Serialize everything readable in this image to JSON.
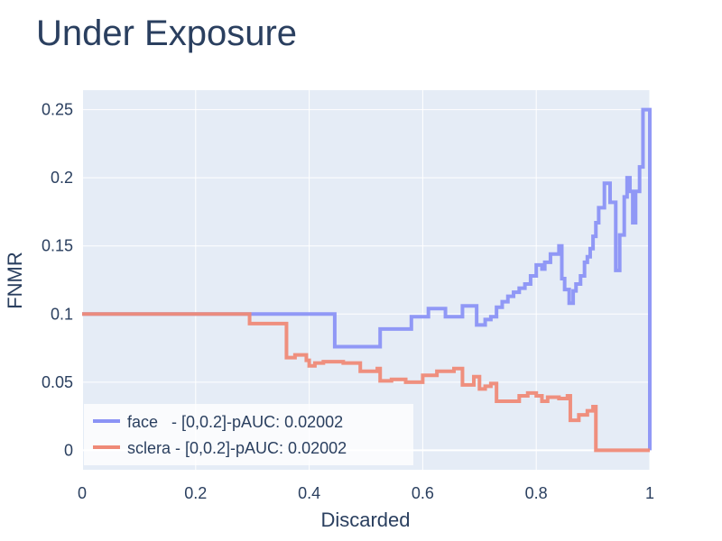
{
  "chart_data": {
    "type": "line",
    "title": "Under Exposure",
    "xlabel": "Discarded",
    "ylabel": "FNMR",
    "xlim": [
      0,
      1
    ],
    "ylim": [
      -0.0143,
      0.2643
    ],
    "x_ticks": [
      0,
      0.2,
      0.4,
      0.6,
      0.8,
      1
    ],
    "x_tick_labels": [
      "0",
      "0.2",
      "0.4",
      "0.6",
      "0.8",
      "1"
    ],
    "y_ticks": [
      0,
      0.05,
      0.1,
      0.15,
      0.2,
      0.25
    ],
    "y_tick_labels": [
      "0",
      "0.05",
      "0.1",
      "0.15",
      "0.2",
      "0.25"
    ],
    "grid": true,
    "legend_position": "bottom-left",
    "line_shape": "step",
    "colors": {
      "plot_bg": "#E5ECF6",
      "grid": "#ffffff",
      "text": "#2a3f5f"
    },
    "series": [
      {
        "name": "face",
        "legend_label": "face   - [0,0.2]-pAUC: 0.02002",
        "color": "#8b93f5",
        "x": [
          0,
          0.3,
          0.445,
          0.525,
          0.58,
          0.61,
          0.64,
          0.67,
          0.695,
          0.71,
          0.72,
          0.73,
          0.74,
          0.75,
          0.76,
          0.77,
          0.78,
          0.79,
          0.8,
          0.81,
          0.815,
          0.825,
          0.84,
          0.845,
          0.85,
          0.858,
          0.865,
          0.87,
          0.878,
          0.885,
          0.89,
          0.895,
          0.9,
          0.905,
          0.91,
          0.92,
          0.93,
          0.94,
          0.947,
          0.955,
          0.96,
          0.965,
          0.97,
          0.975,
          0.982,
          0.988,
          0.992,
          0.998,
          1.0
        ],
        "y": [
          0.1,
          0.1,
          0.076,
          0.089,
          0.098,
          0.104,
          0.098,
          0.106,
          0.092,
          0.096,
          0.098,
          0.105,
          0.109,
          0.113,
          0.116,
          0.119,
          0.122,
          0.128,
          0.136,
          0.133,
          0.138,
          0.144,
          0.15,
          0.126,
          0.118,
          0.108,
          0.117,
          0.122,
          0.128,
          0.138,
          0.142,
          0.148,
          0.157,
          0.167,
          0.178,
          0.196,
          0.182,
          0.132,
          0.158,
          0.186,
          0.2,
          0.19,
          0.167,
          0.19,
          0.208,
          0.25,
          0.25,
          0.25,
          0.0
        ]
      },
      {
        "name": "sclera",
        "legend_label": "sclera - [0,0.2]-pAUC: 0.02002",
        "color": "#ef8a77",
        "x": [
          0,
          0.295,
          0.36,
          0.375,
          0.395,
          0.4,
          0.41,
          0.425,
          0.46,
          0.49,
          0.52,
          0.525,
          0.545,
          0.57,
          0.6,
          0.625,
          0.655,
          0.67,
          0.69,
          0.7,
          0.71,
          0.72,
          0.73,
          0.77,
          0.785,
          0.8,
          0.81,
          0.82,
          0.84,
          0.855,
          0.86,
          0.875,
          0.89,
          0.9,
          0.905,
          1.0
        ],
        "y": [
          0.1,
          0.093,
          0.068,
          0.07,
          0.066,
          0.062,
          0.064,
          0.065,
          0.064,
          0.058,
          0.06,
          0.051,
          0.052,
          0.05,
          0.055,
          0.058,
          0.06,
          0.048,
          0.054,
          0.045,
          0.047,
          0.049,
          0.036,
          0.04,
          0.042,
          0.04,
          0.036,
          0.039,
          0.038,
          0.04,
          0.022,
          0.026,
          0.029,
          0.032,
          0.0,
          0.0
        ]
      }
    ]
  }
}
